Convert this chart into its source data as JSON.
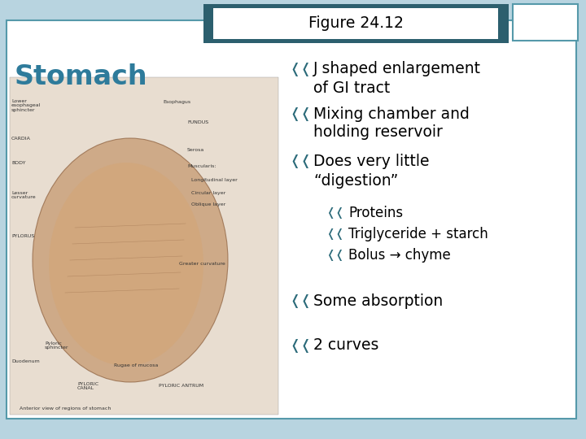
{
  "title": "Figure 24.12",
  "slide_title": "Stomach",
  "slide_title_color": "#2E7B9B",
  "title_bg_color": "#2C5F6E",
  "title_text_color": "#000000",
  "bg_color": "#B8D4E0",
  "content_bg_color": "#ffffff",
  "content_border_color": "#5599AA",
  "bullet_color": "#2C6B7A",
  "text_color": "#000000",
  "items": [
    {
      "level": 1,
      "line1": "J shaped enlargement",
      "line2": "of GI tract"
    },
    {
      "level": 1,
      "line1": "Mixing chamber and",
      "line2": "holding reservoir"
    },
    {
      "level": 1,
      "line1": "Does very little",
      "line2": "“digestion”"
    },
    {
      "level": 2,
      "line1": "Proteins",
      "line2": null
    },
    {
      "level": 2,
      "line1": "Triglyceride + starch",
      "line2": null
    },
    {
      "level": 2,
      "line1": "Bolus → chyme",
      "line2": null
    },
    {
      "level": 1,
      "line1": "Some absorption",
      "line2": null
    },
    {
      "level": 1,
      "line1": "2 curves",
      "line2": null
    }
  ]
}
